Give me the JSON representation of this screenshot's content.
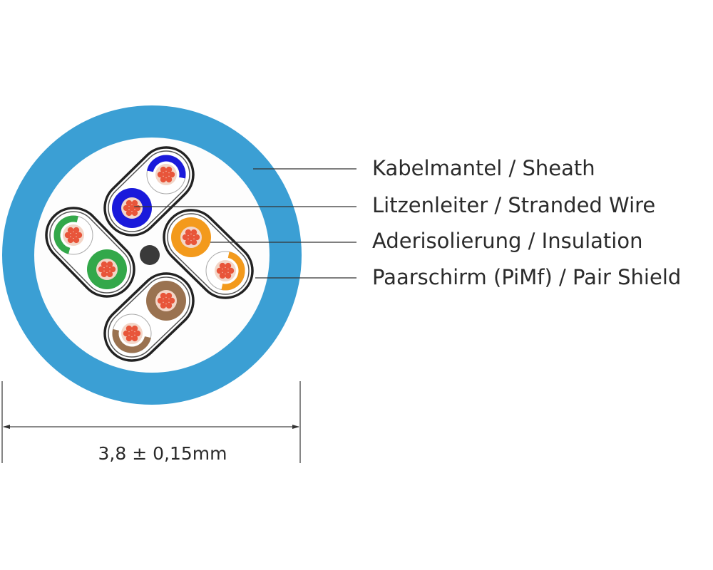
{
  "labels": [
    {
      "text": "Kabelmantel / Sheath"
    },
    {
      "text": "Litzenleiter / Stranded Wire"
    },
    {
      "text": "Aderisolierung / Insulation"
    },
    {
      "text": "Paarschirm (PiMf) / Pair Shield"
    }
  ],
  "dimension": "3,8 ± 0,15mm",
  "colors": {
    "sheath": "#3b9fd4",
    "copper": "#e8553a",
    "filler": "#3a3a3a",
    "pairs": [
      "#1a1adb",
      "#33a84a",
      "#f39a1c",
      "#9a7250"
    ]
  }
}
